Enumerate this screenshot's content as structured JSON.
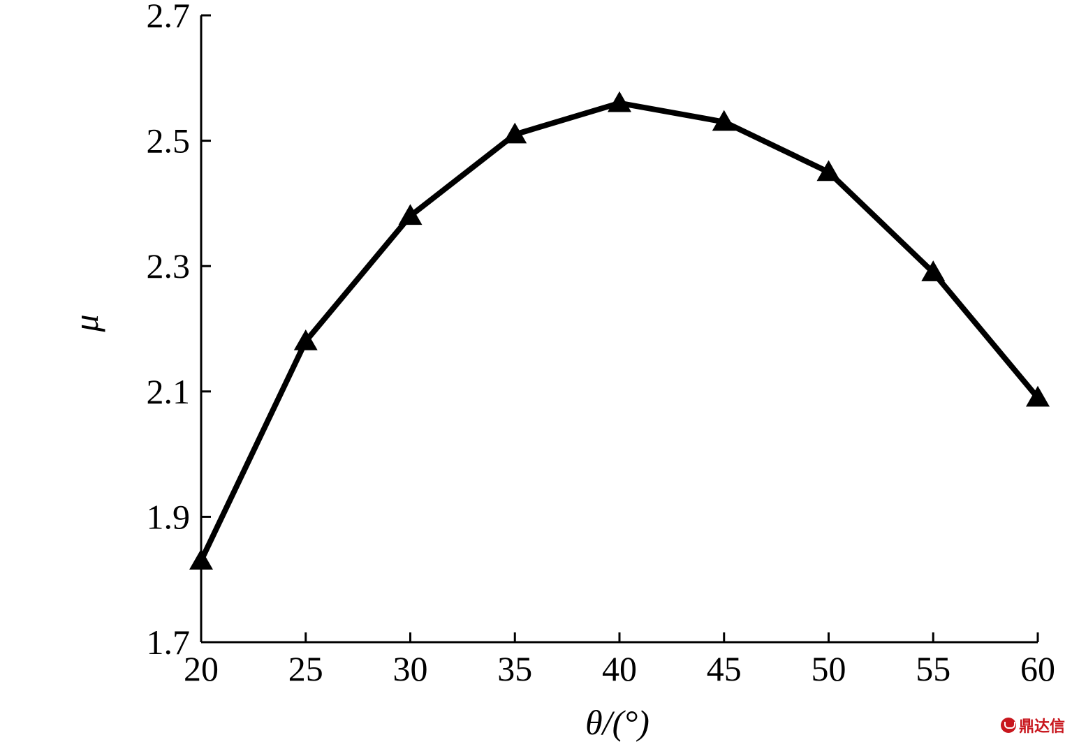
{
  "chart_data": {
    "type": "line",
    "x": [
      20,
      25,
      30,
      35,
      40,
      45,
      50,
      55,
      60
    ],
    "series": [
      {
        "values": [
          1.83,
          2.18,
          2.38,
          2.51,
          2.56,
          2.53,
          2.45,
          2.29,
          2.09
        ],
        "marker": "triangle",
        "color": "#000000"
      }
    ],
    "xlabel": "θ/(°)",
    "ylabel": "μ",
    "xlim": [
      20,
      60
    ],
    "ylim": [
      1.7,
      2.7
    ],
    "xticks": [
      "20",
      "25",
      "30",
      "35",
      "40",
      "45",
      "50",
      "55",
      "60"
    ],
    "yticks": [
      "1.7",
      "1.9",
      "2.1",
      "2.3",
      "2.5",
      "2.7"
    ],
    "grid": false
  },
  "watermark": {
    "text": "鼎达信",
    "logo_icon": "dingdaxin-logo-icon"
  }
}
